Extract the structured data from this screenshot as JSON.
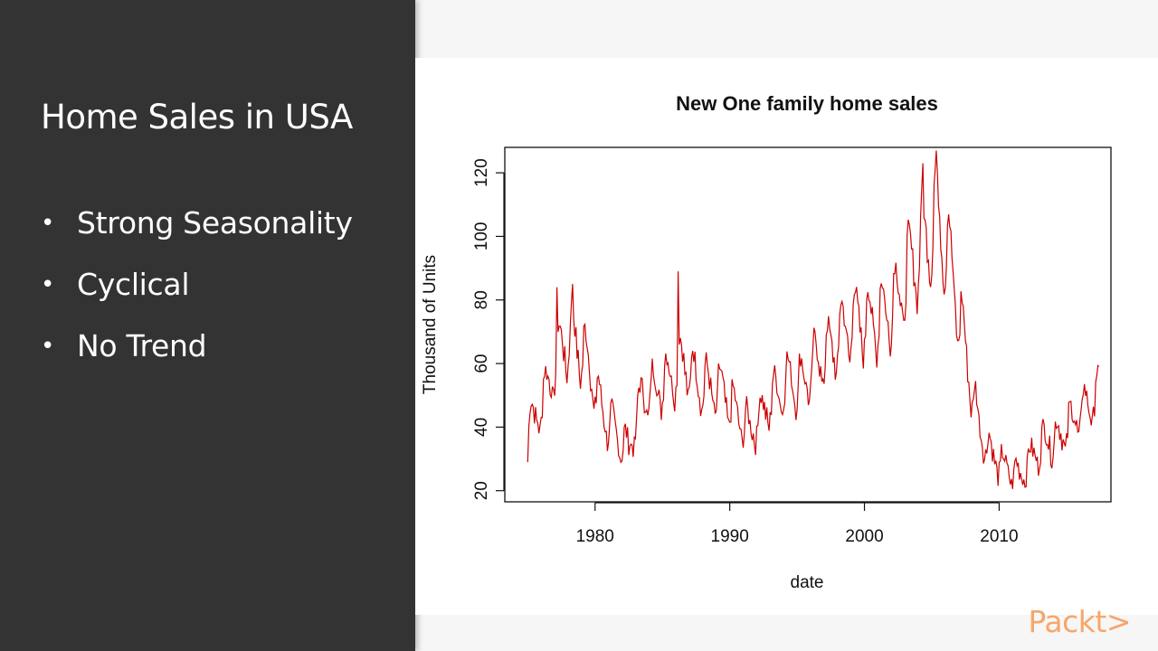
{
  "slide": {
    "title": "Home Sales in USA",
    "bullets": [
      "Strong Seasonality",
      "Cyclical",
      "No Trend"
    ]
  },
  "brand": {
    "logo_text": "Packt>",
    "logo_color": "#f7a669"
  },
  "colors": {
    "panel_bg": "#333333",
    "series_line": "#cc0000"
  },
  "chart_data": {
    "type": "line",
    "title": "New One family home sales",
    "xlabel": "date",
    "ylabel": "Thousand of Units",
    "xlim": [
      1973.3,
      2018.3
    ],
    "ylim": [
      16.5,
      128
    ],
    "x_ticks": [
      1980,
      1990,
      2000,
      2010
    ],
    "y_ticks": [
      20,
      40,
      60,
      80,
      100,
      120
    ],
    "grid": false,
    "series": [
      {
        "name": "sales",
        "start_year": 1975,
        "frequency": "monthly",
        "annual_levels": [
          [
            1975,
            42
          ],
          [
            1976,
            53
          ],
          [
            1977,
            66
          ],
          [
            1978,
            68
          ],
          [
            1979,
            60
          ],
          [
            1980,
            45
          ],
          [
            1981,
            38
          ],
          [
            1982,
            33
          ],
          [
            1983,
            50
          ],
          [
            1984,
            52
          ],
          [
            1985,
            56
          ],
          [
            1986,
            61
          ],
          [
            1987,
            55
          ],
          [
            1988,
            52
          ],
          [
            1989,
            51
          ],
          [
            1990,
            44
          ],
          [
            1991,
            39
          ],
          [
            1992,
            45
          ],
          [
            1993,
            51
          ],
          [
            1994,
            55
          ],
          [
            1995,
            54
          ],
          [
            1996,
            61
          ],
          [
            1997,
            64
          ],
          [
            1998,
            71
          ],
          [
            1999,
            74
          ],
          [
            2000,
            73
          ],
          [
            2001,
            76
          ],
          [
            2002,
            81
          ],
          [
            2003,
            91
          ],
          [
            2004,
            99
          ],
          [
            2005,
            107
          ],
          [
            2006,
            89
          ],
          [
            2007,
            64
          ],
          [
            2008,
            40
          ],
          [
            2009,
            31
          ],
          [
            2010,
            27
          ],
          [
            2011,
            25
          ],
          [
            2012,
            31
          ],
          [
            2013,
            36
          ],
          [
            2014,
            37
          ],
          [
            2015,
            42
          ],
          [
            2016,
            47
          ],
          [
            2017,
            51
          ]
        ],
        "seasonal_pattern": [
          -7,
          -3,
          7,
          9,
          8,
          6,
          3,
          1,
          -3,
          -4,
          -8,
          -10
        ]
      }
    ],
    "peak_points": [
      [
        1977.2,
        84
      ],
      [
        1978.3,
        85
      ],
      [
        1986.2,
        89
      ],
      [
        2005.3,
        127
      ],
      [
        2004.3,
        123
      ]
    ]
  }
}
